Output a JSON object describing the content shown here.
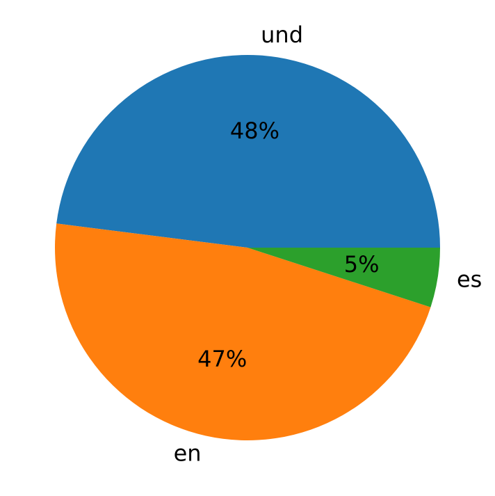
{
  "chart_data": {
    "type": "pie",
    "categories": [
      "und",
      "en",
      "es"
    ],
    "values": [
      48,
      47,
      5
    ],
    "value_labels": [
      "48%",
      "47%",
      "5%"
    ],
    "colors": [
      "#1f77b4",
      "#ff7f0e",
      "#2ca02c"
    ]
  }
}
